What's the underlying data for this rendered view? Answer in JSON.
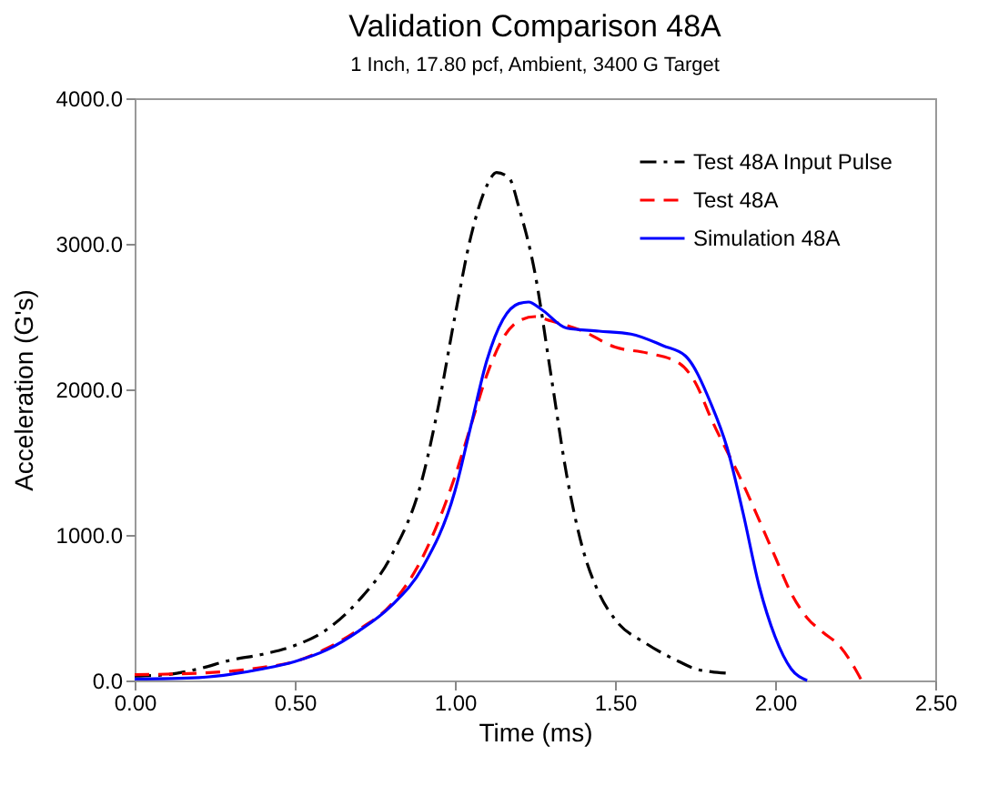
{
  "chart_data": {
    "type": "line",
    "title": "Validation Comparison 48A",
    "subtitle": "1 Inch, 17.80 pcf, Ambient, 3400 G Target",
    "xlabel": "Time (ms)",
    "ylabel": "Acceleration (G's)",
    "xlim": [
      0,
      2.5
    ],
    "ylim": [
      0,
      4000
    ],
    "xticks": [
      {
        "value": 0,
        "label": "0.00"
      },
      {
        "value": 0.5,
        "label": "0.50"
      },
      {
        "value": 1,
        "label": "1.00"
      },
      {
        "value": 1.5,
        "label": "1.50"
      },
      {
        "value": 2,
        "label": "2.00"
      },
      {
        "value": 2.5,
        "label": "2.50"
      }
    ],
    "yticks": [
      {
        "value": 0,
        "label": "0.0"
      },
      {
        "value": 1000,
        "label": "1000.0"
      },
      {
        "value": 2000,
        "label": "2000.0"
      },
      {
        "value": 3000,
        "label": "3000.0"
      },
      {
        "value": 4000,
        "label": "4000.0"
      }
    ],
    "grid": false,
    "legend": "top right",
    "marker": "none",
    "series": [
      {
        "name": "Test 48A Input Pulse",
        "color": "#000000",
        "line_style": "dashdot",
        "x": [
          0,
          0.1,
          0.2,
          0.3,
          0.4,
          0.5,
          0.6,
          0.7,
          0.8,
          0.9,
          0.95,
          1.0,
          1.05,
          1.1,
          1.13,
          1.17,
          1.2,
          1.25,
          1.3,
          1.35,
          1.4,
          1.45,
          1.5,
          1.6,
          1.7,
          1.75,
          1.8,
          1.85
        ],
        "values": [
          30,
          40,
          80,
          140,
          180,
          240,
          350,
          550,
          850,
          1400,
          1900,
          2500,
          3050,
          3400,
          3490,
          3450,
          3250,
          2800,
          2100,
          1400,
          900,
          600,
          420,
          250,
          130,
          80,
          60,
          50
        ]
      },
      {
        "name": "Test 48A",
        "color": "#ff0000",
        "line_style": "dashed",
        "x": [
          0,
          0.2,
          0.4,
          0.5,
          0.6,
          0.7,
          0.8,
          0.9,
          1.0,
          1.05,
          1.1,
          1.15,
          1.2,
          1.25,
          1.3,
          1.4,
          1.5,
          1.6,
          1.7,
          1.75,
          1.8,
          1.9,
          2.0,
          2.05,
          2.1,
          2.15,
          2.2,
          2.25,
          2.27
        ],
        "values": [
          40,
          50,
          90,
          130,
          220,
          350,
          520,
          850,
          1400,
          1750,
          2100,
          2350,
          2470,
          2500,
          2470,
          2400,
          2290,
          2250,
          2180,
          2050,
          1800,
          1350,
          850,
          600,
          430,
          330,
          240,
          80,
          0
        ]
      },
      {
        "name": "Simulation 48A",
        "color": "#0000ff",
        "line_style": "solid",
        "x": [
          0,
          0.2,
          0.4,
          0.5,
          0.6,
          0.7,
          0.8,
          0.9,
          1.0,
          1.05,
          1.1,
          1.15,
          1.2,
          1.23,
          1.27,
          1.35,
          1.45,
          1.55,
          1.65,
          1.72,
          1.8,
          1.85,
          1.9,
          1.95,
          2.0,
          2.05,
          2.1
        ],
        "values": [
          10,
          20,
          80,
          130,
          210,
          340,
          510,
          780,
          1300,
          1750,
          2200,
          2480,
          2590,
          2600,
          2550,
          2420,
          2400,
          2380,
          2300,
          2230,
          1900,
          1600,
          1150,
          650,
          300,
          80,
          0
        ]
      }
    ]
  }
}
